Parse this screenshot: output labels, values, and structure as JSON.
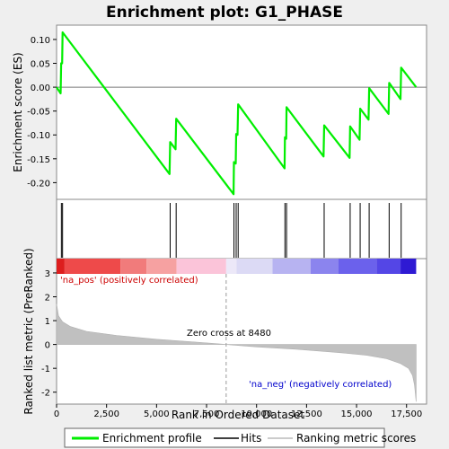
{
  "chart_data": {
    "type": "line",
    "title": "Enrichment plot: G1_PHASE",
    "es_panel": {
      "ylabel": "Enrichment score (ES)",
      "yticks": [
        "0.10",
        "0.05",
        "0.00",
        "-0.05",
        "-0.10",
        "-0.15",
        "-0.20"
      ],
      "ylim": [
        -0.235,
        0.13
      ],
      "grid": false,
      "series": {
        "name": "Enrichment profile",
        "color": "#00ee00",
        "points": [
          [
            0,
            0.0
          ],
          [
            200,
            -0.013
          ],
          [
            230,
            0.05
          ],
          [
            280,
            0.05
          ],
          [
            300,
            0.115
          ],
          [
            5650,
            -0.182
          ],
          [
            5680,
            -0.115
          ],
          [
            5950,
            -0.13
          ],
          [
            5980,
            -0.066
          ],
          [
            8850,
            -0.224
          ],
          [
            8870,
            -0.157
          ],
          [
            8960,
            -0.16
          ],
          [
            8980,
            -0.098
          ],
          [
            9050,
            -0.1
          ],
          [
            9080,
            -0.036
          ],
          [
            11400,
            -0.17
          ],
          [
            11420,
            -0.105
          ],
          [
            11480,
            -0.108
          ],
          [
            11500,
            -0.042
          ],
          [
            13350,
            -0.145
          ],
          [
            13380,
            -0.08
          ],
          [
            14650,
            -0.148
          ],
          [
            14680,
            -0.082
          ],
          [
            15150,
            -0.11
          ],
          [
            15180,
            -0.045
          ],
          [
            15600,
            -0.068
          ],
          [
            15630,
            -0.002
          ],
          [
            16600,
            -0.056
          ],
          [
            16630,
            0.009
          ],
          [
            17200,
            -0.025
          ],
          [
            17230,
            0.041
          ],
          [
            17980,
            0.0
          ]
        ]
      }
    },
    "hits": [
      240,
      300,
      5680,
      5980,
      8870,
      8980,
      9080,
      11420,
      11500,
      13380,
      14680,
      15180,
      15630,
      16630,
      17230
    ],
    "rank_panel": {
      "ylabel": "Ranked list metric (PreRanked)",
      "xlabel": "Rank in Ordered Dataset",
      "yticks": [
        "3",
        "2",
        "1",
        "0",
        "-1",
        "-2"
      ],
      "xticks": [
        "0",
        "2,500",
        "5,000",
        "7,500",
        "10,000",
        "12,500",
        "15,000",
        "17,500"
      ],
      "ylim": [
        -2.5,
        3.6
      ],
      "xlim": [
        0,
        18500
      ],
      "n_ranks": 17980,
      "zero_cross": 8480,
      "annotation_zero": "Zero cross at 8480",
      "label_pos": "'na_pos' (positively correlated)",
      "label_neg": "'na_neg' (negatively correlated)",
      "label_pos_color": "#cc0000",
      "label_neg_color": "#0000cc",
      "metric_profile": [
        [
          0,
          1.7
        ],
        [
          100,
          1.2
        ],
        [
          300,
          0.95
        ],
        [
          700,
          0.75
        ],
        [
          1500,
          0.55
        ],
        [
          3000,
          0.38
        ],
        [
          5000,
          0.22
        ],
        [
          7000,
          0.1
        ],
        [
          8480,
          0.0
        ],
        [
          10000,
          -0.1
        ],
        [
          12000,
          -0.2
        ],
        [
          14000,
          -0.33
        ],
        [
          15500,
          -0.45
        ],
        [
          16500,
          -0.6
        ],
        [
          17200,
          -0.8
        ],
        [
          17600,
          -1.0
        ],
        [
          17800,
          -1.3
        ],
        [
          17900,
          -1.7
        ],
        [
          17980,
          -2.4
        ]
      ]
    },
    "color_bar": [
      {
        "from": 0,
        "to": 400,
        "color": "#dd1e1e"
      },
      {
        "from": 400,
        "to": 3200,
        "color": "#ee4a4a"
      },
      {
        "from": 3200,
        "to": 4500,
        "color": "#f17b7b"
      },
      {
        "from": 4500,
        "to": 6000,
        "color": "#f6a1a1"
      },
      {
        "from": 6000,
        "to": 8480,
        "color": "#fbc4d9"
      },
      {
        "from": 8480,
        "to": 9000,
        "color": "#ece8f8"
      },
      {
        "from": 9000,
        "to": 10800,
        "color": "#dcdaf5"
      },
      {
        "from": 10800,
        "to": 12700,
        "color": "#b7b3f1"
      },
      {
        "from": 12700,
        "to": 14100,
        "color": "#8b84ee"
      },
      {
        "from": 14100,
        "to": 16000,
        "color": "#6b61ec"
      },
      {
        "from": 16000,
        "to": 17200,
        "color": "#5446e6"
      },
      {
        "from": 17200,
        "to": 17980,
        "color": "#2e1ad3"
      }
    ],
    "legend": {
      "placement": "bottom",
      "entries": [
        {
          "label": "Enrichment profile",
          "color": "#00ee00"
        },
        {
          "label": "Hits",
          "color": "#000000"
        },
        {
          "label": "Ranking metric scores",
          "color": "#bbbbbb"
        }
      ]
    }
  }
}
